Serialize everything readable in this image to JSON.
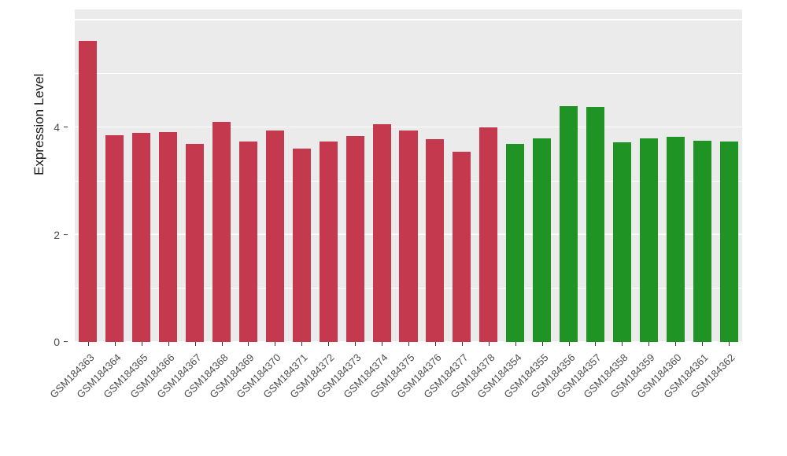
{
  "chart_data": {
    "type": "bar",
    "title": "",
    "xlabel": "",
    "ylabel": "Expression Level",
    "ylim": [
      0,
      6.2
    ],
    "yticks_labeled": [
      0,
      2,
      4
    ],
    "yticks_major": [
      0,
      2,
      4,
      6
    ],
    "yticks_minor": [
      1,
      3,
      5
    ],
    "grid": true,
    "legend": "none",
    "panel_background": "#EBEBEB",
    "grid_color": "#FFFFFF",
    "group_colors": {
      "red": "#C5394E",
      "green": "#1F9425"
    },
    "points": [
      {
        "label": "GSM184363",
        "value": 5.62,
        "group": "red"
      },
      {
        "label": "GSM184364",
        "value": 3.86,
        "group": "red"
      },
      {
        "label": "GSM184365",
        "value": 3.9,
        "group": "red"
      },
      {
        "label": "GSM184366",
        "value": 3.91,
        "group": "red"
      },
      {
        "label": "GSM184367",
        "value": 3.7,
        "group": "red"
      },
      {
        "label": "GSM184368",
        "value": 4.1,
        "group": "red"
      },
      {
        "label": "GSM184369",
        "value": 3.74,
        "group": "red"
      },
      {
        "label": "GSM184370",
        "value": 3.95,
        "group": "red"
      },
      {
        "label": "GSM184371",
        "value": 3.6,
        "group": "red"
      },
      {
        "label": "GSM184372",
        "value": 3.74,
        "group": "red"
      },
      {
        "label": "GSM184373",
        "value": 3.84,
        "group": "red"
      },
      {
        "label": "GSM184374",
        "value": 4.06,
        "group": "red"
      },
      {
        "label": "GSM184375",
        "value": 3.95,
        "group": "red"
      },
      {
        "label": "GSM184376",
        "value": 3.78,
        "group": "red"
      },
      {
        "label": "GSM184377",
        "value": 3.55,
        "group": "red"
      },
      {
        "label": "GSM184378",
        "value": 4.0,
        "group": "red"
      },
      {
        "label": "GSM184354",
        "value": 3.7,
        "group": "green"
      },
      {
        "label": "GSM184355",
        "value": 3.79,
        "group": "green"
      },
      {
        "label": "GSM184356",
        "value": 4.4,
        "group": "green"
      },
      {
        "label": "GSM184357",
        "value": 4.38,
        "group": "green"
      },
      {
        "label": "GSM184358",
        "value": 3.73,
        "group": "green"
      },
      {
        "label": "GSM184359",
        "value": 3.8,
        "group": "green"
      },
      {
        "label": "GSM184360",
        "value": 3.82,
        "group": "green"
      },
      {
        "label": "GSM184361",
        "value": 3.75,
        "group": "green"
      },
      {
        "label": "GSM184362",
        "value": 3.74,
        "group": "green"
      }
    ]
  }
}
